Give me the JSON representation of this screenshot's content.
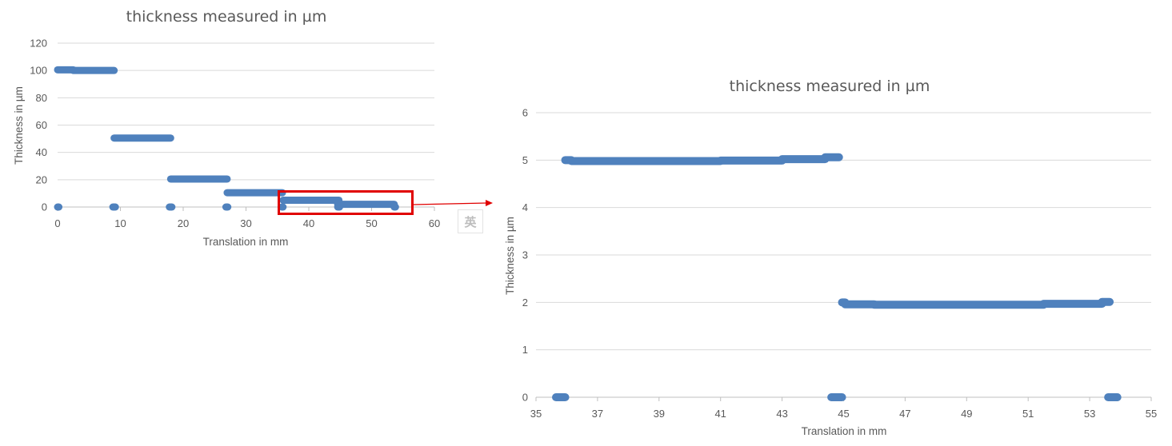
{
  "chart_data": [
    {
      "type": "scatter",
      "title": "thickness measured in µm",
      "xlabel": "Translation in mm",
      "ylabel": "Thickness in µm",
      "xlim": [
        0,
        60
      ],
      "ylim": [
        0,
        120
      ],
      "xticks": [
        0,
        10,
        20,
        30,
        40,
        50,
        60
      ],
      "yticks": [
        0,
        20,
        40,
        60,
        80,
        100,
        120
      ],
      "grid": true,
      "legend": "none",
      "series": [
        {
          "values": [
            {
              "x": [
                0,
                2.5
              ],
              "y": 100.5
            },
            {
              "x": [
                2.5,
                9
              ],
              "y": 100
            },
            {
              "x": [
                0,
                0.2
              ],
              "y": 0
            },
            {
              "x": [
                8.8,
                9.2
              ],
              "y": 0
            },
            {
              "x": [
                9,
                18
              ],
              "y": 50.5
            },
            {
              "x": [
                17.8,
                18.2
              ],
              "y": 0
            },
            {
              "x": [
                18,
                27
              ],
              "y": 20.5
            },
            {
              "x": [
                26.8,
                27.1
              ],
              "y": 0
            },
            {
              "x": [
                27,
                35.8
              ],
              "y": 10.5
            },
            {
              "x": [
                35.7,
                35.9
              ],
              "y": 0
            },
            {
              "x": [
                35.9,
                44.8
              ],
              "y": 5
            },
            {
              "x": [
                44.6,
                53.6
              ],
              "y": 2
            },
            {
              "x": [
                44.6,
                44.9
              ],
              "y": 0
            },
            {
              "x": [
                53.6,
                53.8
              ],
              "y": 0
            }
          ]
        }
      ]
    },
    {
      "type": "scatter",
      "title": "thickness measured in µm",
      "xlabel": "Translation in mm",
      "ylabel": "Thickness in µm",
      "xlim": [
        35,
        55
      ],
      "ylim": [
        0,
        6
      ],
      "xticks": [
        35,
        37,
        39,
        41,
        43,
        45,
        47,
        49,
        51,
        53,
        55
      ],
      "yticks": [
        0,
        1,
        2,
        3,
        4,
        5,
        6
      ],
      "grid": true,
      "legend": "none",
      "series": [
        {
          "values": [
            {
              "x": [
                35.95,
                36.15
              ],
              "y": 5.0
            },
            {
              "x": [
                36.15,
                41.0
              ],
              "y": 4.98
            },
            {
              "x": [
                41.0,
                43.0
              ],
              "y": 4.99
            },
            {
              "x": [
                43.0,
                44.4
              ],
              "y": 5.02
            },
            {
              "x": [
                44.4,
                44.85
              ],
              "y": 5.06
            },
            {
              "x": [
                35.65,
                35.95
              ],
              "y": 0
            },
            {
              "x": [
                44.6,
                44.95
              ],
              "y": 0
            },
            {
              "x": [
                44.95,
                45.05
              ],
              "y": 2.0
            },
            {
              "x": [
                45.05,
                46.0
              ],
              "y": 1.96
            },
            {
              "x": [
                46.0,
                51.5
              ],
              "y": 1.95
            },
            {
              "x": [
                51.5,
                53.4
              ],
              "y": 1.97
            },
            {
              "x": [
                53.4,
                53.65
              ],
              "y": 2.01
            },
            {
              "x": [
                53.6,
                53.9
              ],
              "y": 0
            }
          ]
        }
      ]
    }
  ],
  "annotation": {
    "highlight_color": "#e00000",
    "ime_indicator": "英"
  }
}
